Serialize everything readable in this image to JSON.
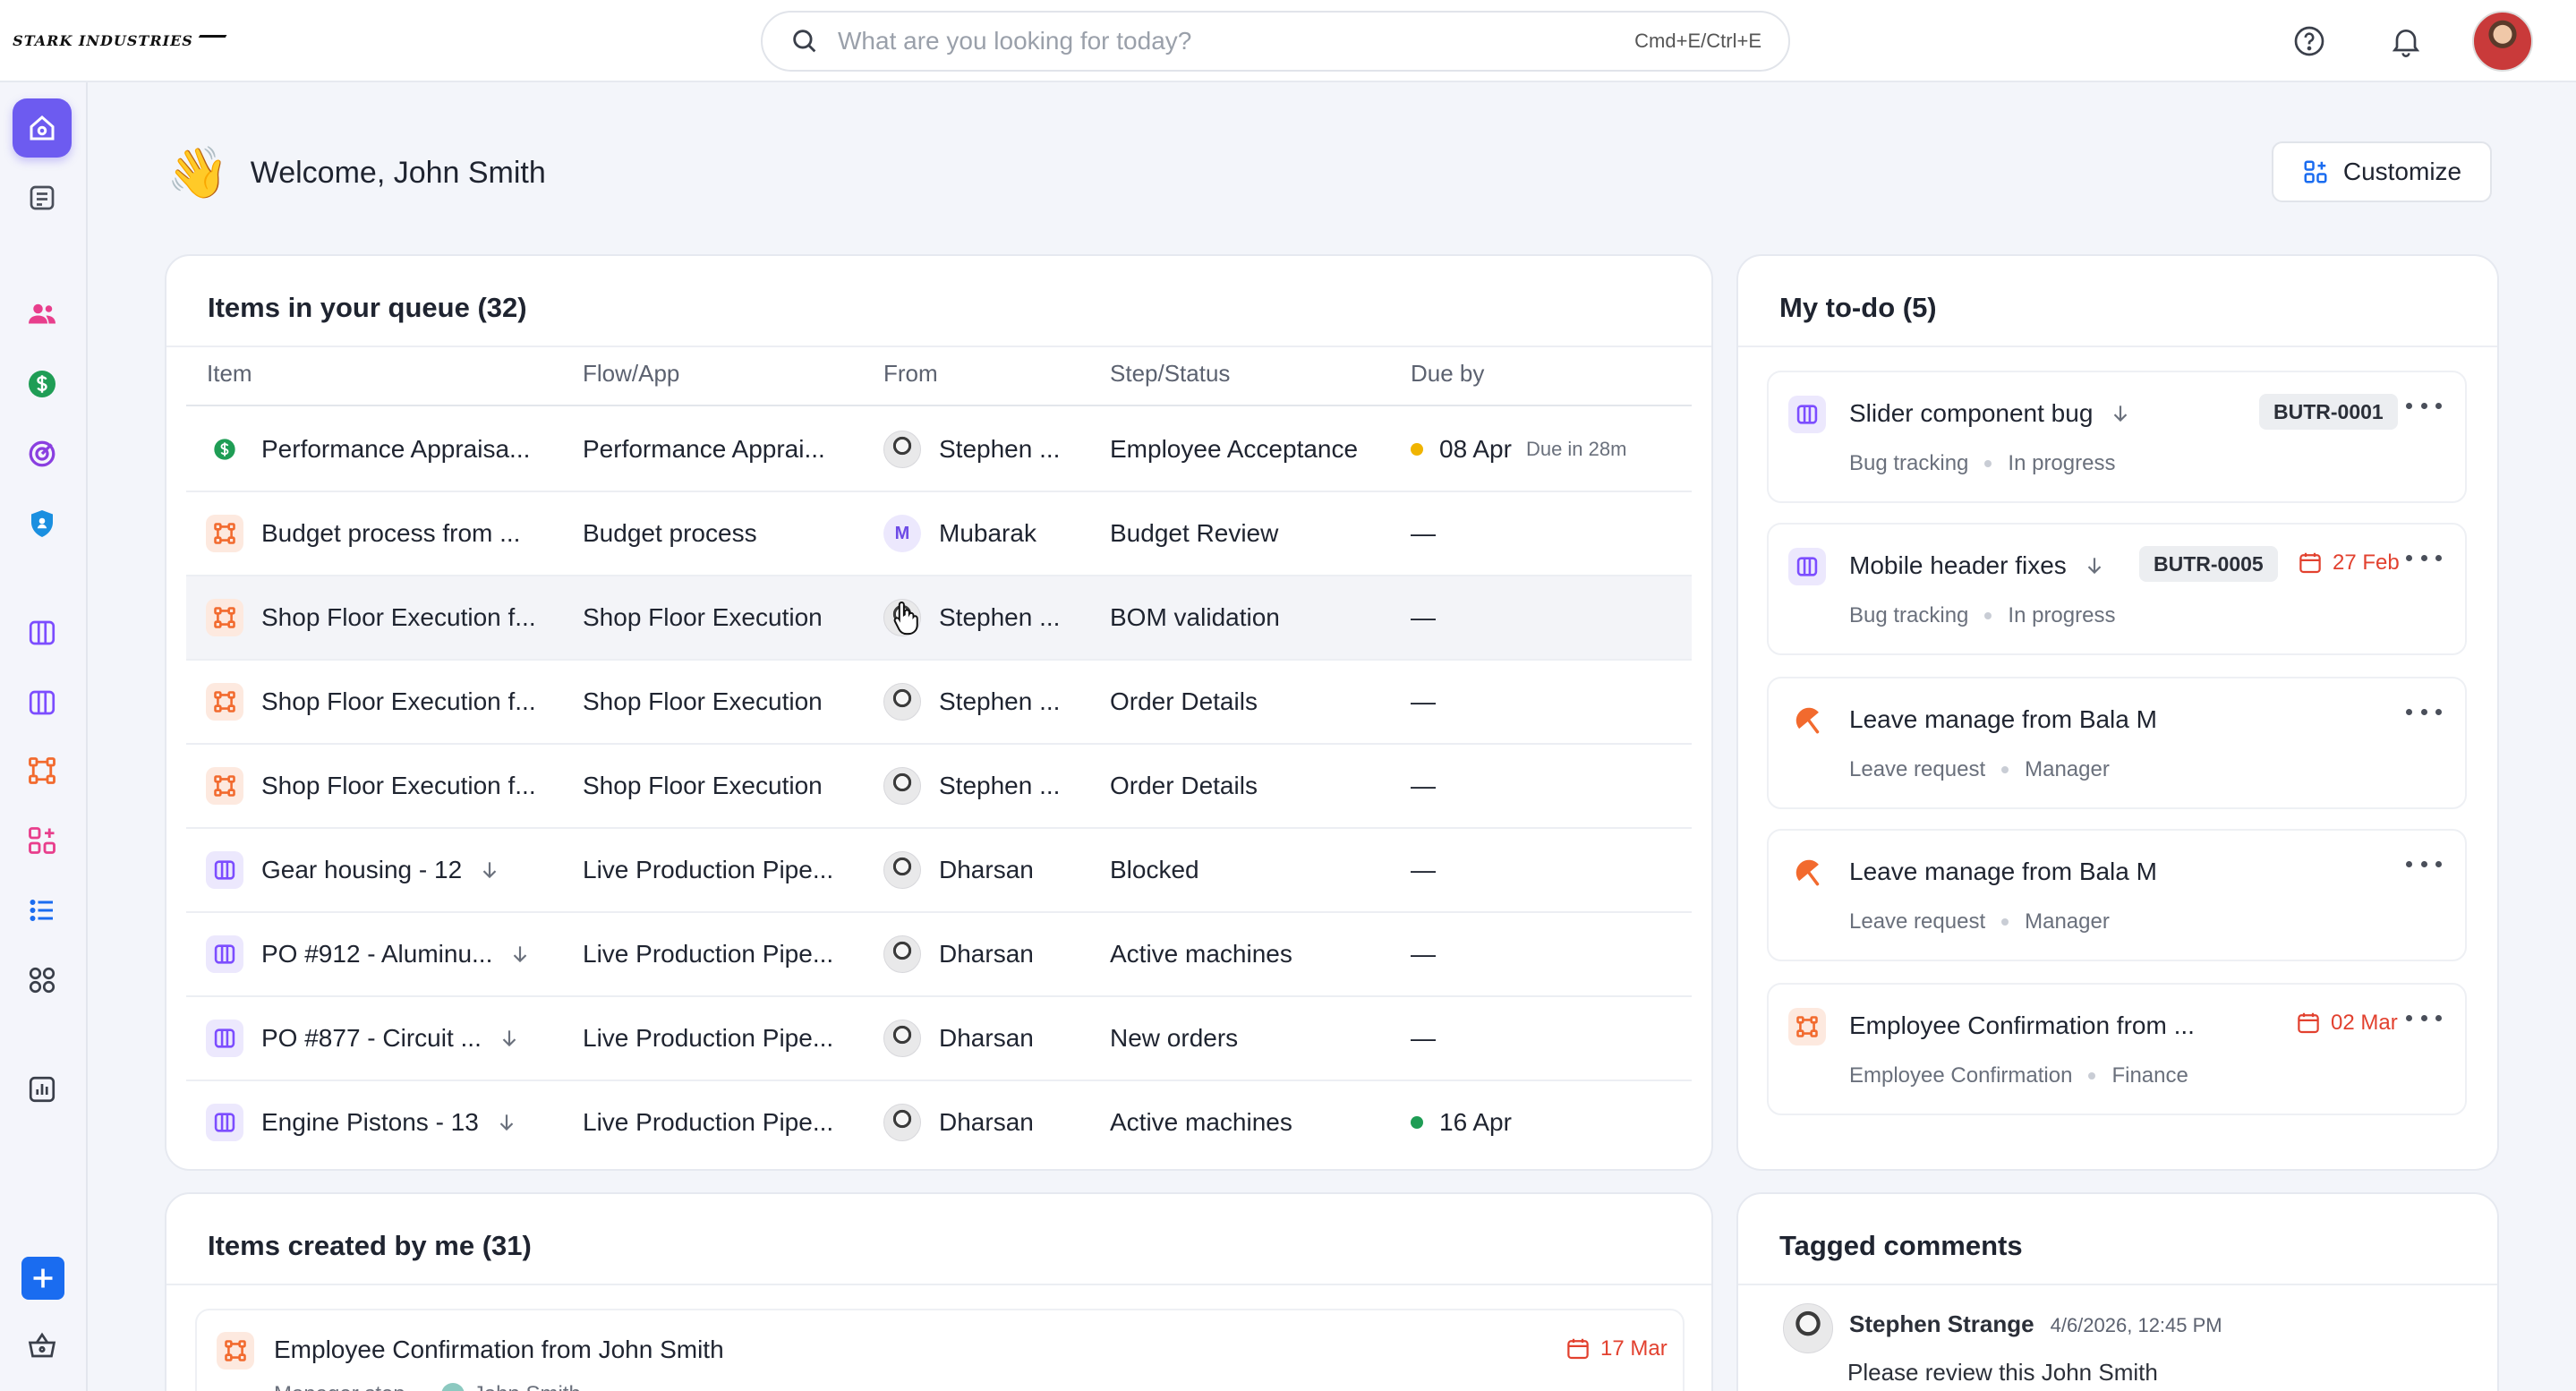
{
  "topbar": {
    "logo_text": "STARK INDUSTRIES",
    "search_placeholder": "What are you looking for today?",
    "search_shortcut": "Cmd+E/Ctrl+E",
    "icons": [
      "help-icon",
      "bell-icon",
      "user-avatar"
    ]
  },
  "sidebar": {
    "icons": [
      "home-icon",
      "notes-icon",
      "users-icon",
      "dollar-icon",
      "target-icon",
      "shield-icon",
      "board-icon",
      "board-icon",
      "workflow-icon",
      "apps-add-icon",
      "list-icon",
      "grid-icon",
      "chart-icon",
      "plus-icon",
      "basket-icon"
    ]
  },
  "welcome": {
    "emoji": "👋",
    "text": "Welcome, John Smith",
    "customize_label": "Customize"
  },
  "queue": {
    "title": "Items in your queue (32)",
    "columns": [
      "Item",
      "Flow/App",
      "From",
      "Step/Status",
      "Due by"
    ],
    "rows": [
      {
        "item": "Performance Appraisa...",
        "app": "Performance Apprai...",
        "from": "Stephen ...",
        "status": "Employee Acceptance",
        "due": "08 Apr",
        "due_note": "Due in 28m",
        "icon": "dollar-icon"
      },
      {
        "item": "Budget process from ...",
        "app": "Budget process",
        "from": "Mubarak",
        "from_initial": "M",
        "status": "Budget Review",
        "due": "—",
        "icon": "workflow-icon"
      },
      {
        "item": "Shop Floor Execution f...",
        "app": "Shop Floor Execution",
        "from": "Stephen ...",
        "status": "BOM validation",
        "due": "—",
        "icon": "workflow-icon"
      },
      {
        "item": "Shop Floor Execution f...",
        "app": "Shop Floor Execution",
        "from": "Stephen ...",
        "status": "Order Details",
        "due": "—",
        "icon": "workflow-icon"
      },
      {
        "item": "Shop Floor Execution f...",
        "app": "Shop Floor Execution",
        "from": "Stephen ...",
        "status": "Order Details",
        "due": "—",
        "icon": "workflow-icon"
      },
      {
        "item": "Gear housing - 12",
        "app": "Live Production Pipe...",
        "from": "Dharsan",
        "status": "Blocked",
        "due": "—",
        "icon": "board-icon"
      },
      {
        "item": "PO #912 - Aluminu...",
        "app": "Live Production Pipe...",
        "from": "Dharsan",
        "status": "Active machines",
        "due": "—",
        "icon": "board-icon"
      },
      {
        "item": "PO #877 - Circuit ...",
        "app": "Live Production Pipe...",
        "from": "Dharsan",
        "status": "New orders",
        "due": "—",
        "icon": "board-icon"
      },
      {
        "item": "Engine Pistons - 13",
        "app": "Live Production Pipe...",
        "from": "Dharsan",
        "status": "Active machines",
        "due": "16 Apr",
        "icon": "board-icon"
      }
    ]
  },
  "todo": {
    "title": "My to-do (5)",
    "items": [
      {
        "title": "Slider component bug",
        "tag": "BUTR-0001",
        "app": "Bug tracking",
        "step": "In progress"
      },
      {
        "title": "Mobile header fixes",
        "tag": "BUTR-0005",
        "date": "27 Feb",
        "app": "Bug tracking",
        "step": "In progress"
      },
      {
        "title": "Leave manage from Bala M",
        "app": "Leave request",
        "step": "Manager"
      },
      {
        "title": "Leave manage from Bala M",
        "app": "Leave request",
        "step": "Manager"
      },
      {
        "title": "Employee Confirmation from ...",
        "date": "02 Mar",
        "app": "Employee Confirmation",
        "step": "Finance"
      }
    ]
  },
  "created": {
    "title": "Items created by me (31)",
    "items": [
      {
        "title": "Employee Confirmation from John Smith",
        "date": "17 Mar",
        "step": "Manager step",
        "user": "John Smith"
      }
    ]
  },
  "comments": {
    "title": "Tagged comments",
    "items": [
      {
        "author": "Stephen Strange",
        "timestamp": "4/6/2026, 12:45 PM",
        "text": "Please review this John Smith"
      }
    ]
  },
  "colors": {
    "accent": "#6d5bf0",
    "orange": "#f26a2e",
    "green": "#1f9d55",
    "purple": "#7c4dff",
    "red": "#e2412f",
    "amber": "#f0b400"
  }
}
